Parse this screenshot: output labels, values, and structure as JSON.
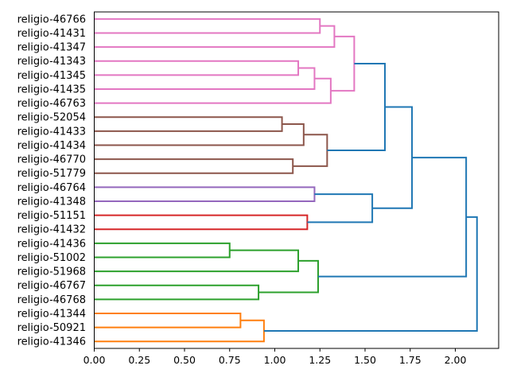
{
  "figure": {
    "background": "#ffffff"
  },
  "chart_data": {
    "type": "dendrogram",
    "orientation": "left",
    "title": "",
    "xlabel": "",
    "ylabel": "",
    "grid": false,
    "xlim": [
      0,
      2.24
    ],
    "x_ticks": [
      "0.00",
      "0.25",
      "0.50",
      "0.75",
      "1.00",
      "1.25",
      "1.50",
      "1.75",
      "2.00"
    ],
    "colors": {
      "blue": "#1f77b4",
      "orange": "#ff7f0e",
      "green": "#2ca02c",
      "red": "#d62728",
      "purple": "#9467bd",
      "brown": "#8c564b",
      "pink": "#e377c2",
      "axis": "#000000",
      "label_text": "#000000"
    },
    "leaves": [
      {
        "label": "religio-46766",
        "cluster": "pink"
      },
      {
        "label": "religio-41431",
        "cluster": "pink"
      },
      {
        "label": "religio-41347",
        "cluster": "pink"
      },
      {
        "label": "religio-41343",
        "cluster": "pink"
      },
      {
        "label": "religio-41345",
        "cluster": "pink"
      },
      {
        "label": "religio-41435",
        "cluster": "pink"
      },
      {
        "label": "religio-46763",
        "cluster": "pink"
      },
      {
        "label": "religio-52054",
        "cluster": "brown"
      },
      {
        "label": "religio-41433",
        "cluster": "brown"
      },
      {
        "label": "religio-41434",
        "cluster": "brown"
      },
      {
        "label": "religio-46770",
        "cluster": "brown"
      },
      {
        "label": "religio-51779",
        "cluster": "brown"
      },
      {
        "label": "religio-46764",
        "cluster": "purple"
      },
      {
        "label": "religio-41348",
        "cluster": "purple"
      },
      {
        "label": "religio-51151",
        "cluster": "red"
      },
      {
        "label": "religio-41432",
        "cluster": "red"
      },
      {
        "label": "religio-41436",
        "cluster": "green"
      },
      {
        "label": "religio-51002",
        "cluster": "green"
      },
      {
        "label": "religio-51968",
        "cluster": "green"
      },
      {
        "label": "religio-46767",
        "cluster": "green"
      },
      {
        "label": "religio-46768",
        "cluster": "green"
      },
      {
        "label": "religio-41344",
        "cluster": "orange"
      },
      {
        "label": "religio-50921",
        "cluster": "orange"
      },
      {
        "label": "religio-41346",
        "cluster": "orange"
      }
    ],
    "links": [
      {
        "id": "P1",
        "children": [
          "religio-46766",
          "religio-41431"
        ],
        "distance": 1.25,
        "color": "pink"
      },
      {
        "id": "P2",
        "children": [
          "P1",
          "religio-41347"
        ],
        "distance": 1.33,
        "color": "pink"
      },
      {
        "id": "P3",
        "children": [
          "religio-41343",
          "religio-41345"
        ],
        "distance": 1.13,
        "color": "pink"
      },
      {
        "id": "P4",
        "children": [
          "P3",
          "religio-41435"
        ],
        "distance": 1.22,
        "color": "pink"
      },
      {
        "id": "P5",
        "children": [
          "P4",
          "religio-46763"
        ],
        "distance": 1.31,
        "color": "pink"
      },
      {
        "id": "P6",
        "children": [
          "P2",
          "P5"
        ],
        "distance": 1.44,
        "color": "pink"
      },
      {
        "id": "B1",
        "children": [
          "religio-52054",
          "religio-41433"
        ],
        "distance": 1.04,
        "color": "brown"
      },
      {
        "id": "B2",
        "children": [
          "B1",
          "religio-41434"
        ],
        "distance": 1.16,
        "color": "brown"
      },
      {
        "id": "B3",
        "children": [
          "religio-46770",
          "religio-51779"
        ],
        "distance": 1.1,
        "color": "brown"
      },
      {
        "id": "B4",
        "children": [
          "B2",
          "B3"
        ],
        "distance": 1.29,
        "color": "brown"
      },
      {
        "id": "V1",
        "children": [
          "religio-46764",
          "religio-41348"
        ],
        "distance": 1.22,
        "color": "purple"
      },
      {
        "id": "R1",
        "children": [
          "religio-51151",
          "religio-41432"
        ],
        "distance": 1.18,
        "color": "red"
      },
      {
        "id": "G1",
        "children": [
          "religio-41436",
          "religio-51002"
        ],
        "distance": 0.75,
        "color": "green"
      },
      {
        "id": "G2",
        "children": [
          "G1",
          "religio-51968"
        ],
        "distance": 1.13,
        "color": "green"
      },
      {
        "id": "G3",
        "children": [
          "religio-46767",
          "religio-46768"
        ],
        "distance": 0.91,
        "color": "green"
      },
      {
        "id": "G4",
        "children": [
          "G2",
          "G3"
        ],
        "distance": 1.24,
        "color": "green"
      },
      {
        "id": "O1",
        "children": [
          "religio-41344",
          "religio-50921"
        ],
        "distance": 0.81,
        "color": "orange"
      },
      {
        "id": "O2",
        "children": [
          "O1",
          "religio-41346"
        ],
        "distance": 0.94,
        "color": "orange"
      },
      {
        "id": "A1",
        "children": [
          "P6",
          "B4"
        ],
        "distance": 1.61,
        "color": "blue"
      },
      {
        "id": "A2",
        "children": [
          "V1",
          "R1"
        ],
        "distance": 1.54,
        "color": "blue"
      },
      {
        "id": "A3",
        "children": [
          "A1",
          "A2"
        ],
        "distance": 1.76,
        "color": "blue"
      },
      {
        "id": "A4",
        "children": [
          "A3",
          "G4"
        ],
        "distance": 2.06,
        "color": "blue"
      },
      {
        "id": "A5",
        "children": [
          "A4",
          "O2"
        ],
        "distance": 2.12,
        "color": "blue"
      }
    ]
  }
}
